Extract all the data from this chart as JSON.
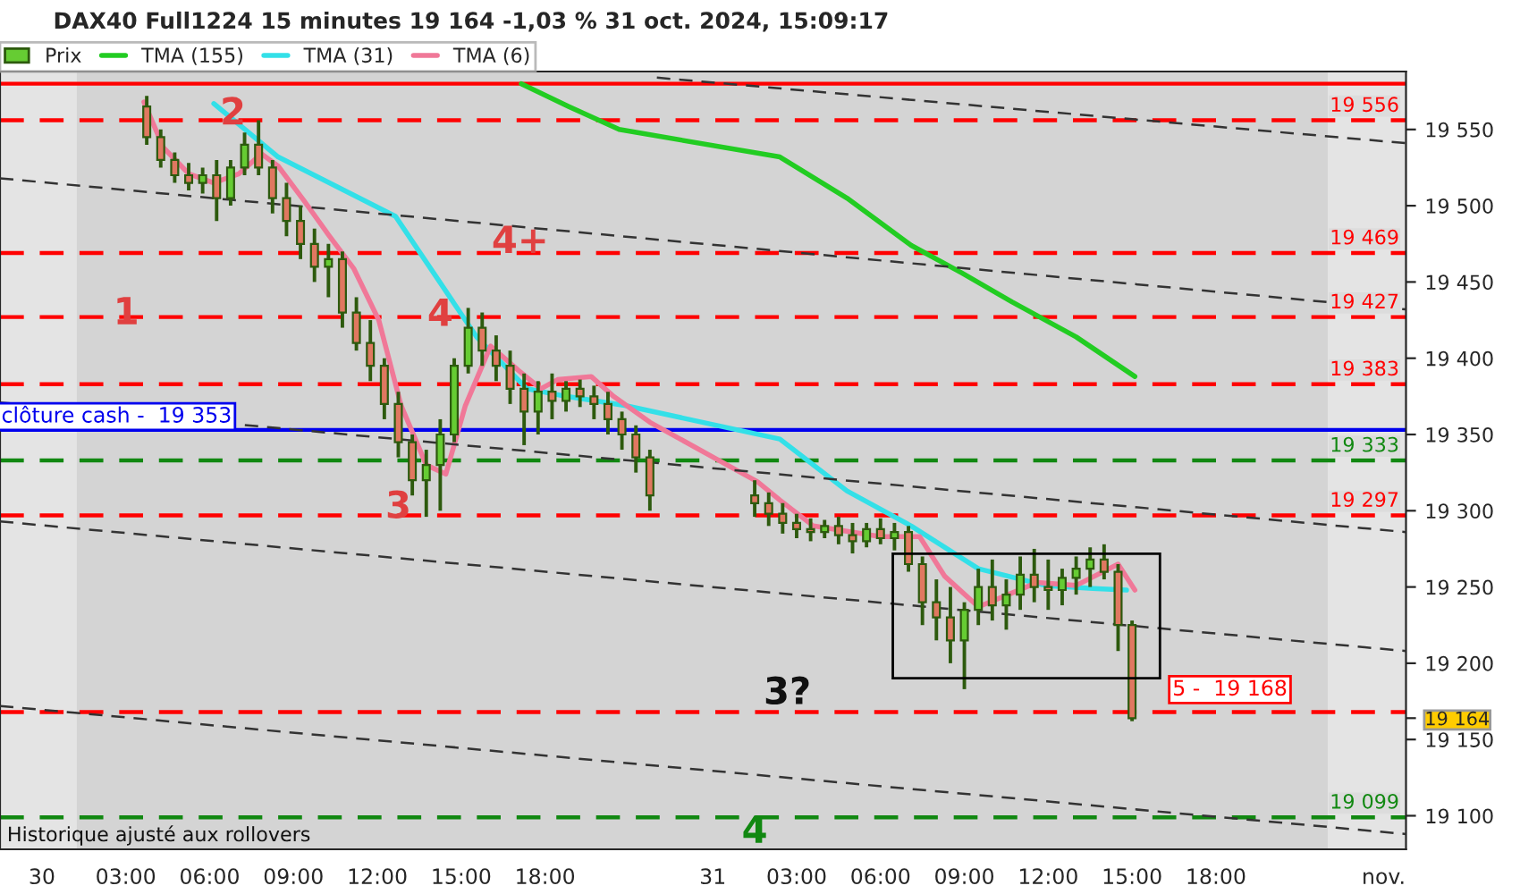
{
  "chart_data": {
    "type": "candlestick",
    "title": "DAX40 Full1224 15 minutes 19 164 -1,03 % 31 oct. 2024, 15:09:17",
    "x": [
      "2024-10-30T03:45",
      "2024-10-30T04:15",
      "2024-10-30T04:45",
      "2024-10-30T05:15",
      "2024-10-30T05:45",
      "2024-10-30T06:15",
      "2024-10-30T06:45",
      "2024-10-30T07:15",
      "2024-10-30T07:45",
      "2024-10-30T08:15",
      "2024-10-30T08:45",
      "2024-10-30T09:15",
      "2024-10-30T09:45",
      "2024-10-30T10:15",
      "2024-10-30T10:45",
      "2024-10-30T11:15",
      "2024-10-30T11:45",
      "2024-10-30T12:15",
      "2024-10-30T12:45",
      "2024-10-30T13:15",
      "2024-10-30T13:45",
      "2024-10-30T14:15",
      "2024-10-30T14:45",
      "2024-10-30T15:15",
      "2024-10-30T15:45",
      "2024-10-30T16:15",
      "2024-10-30T16:45",
      "2024-10-30T17:15",
      "2024-10-30T17:45",
      "2024-10-30T18:15",
      "2024-10-30T18:45",
      "2024-10-30T19:15",
      "2024-10-30T19:45",
      "2024-10-30T20:15",
      "2024-10-30T20:45",
      "2024-10-30T21:15",
      "2024-10-30T21:45",
      "2024-10-31T01:30",
      "2024-10-31T02:00",
      "2024-10-31T02:30",
      "2024-10-31T03:00",
      "2024-10-31T03:30",
      "2024-10-31T04:00",
      "2024-10-31T04:30",
      "2024-10-31T05:00",
      "2024-10-31T05:30",
      "2024-10-31T06:00",
      "2024-10-31T06:30",
      "2024-10-31T07:00",
      "2024-10-31T07:30",
      "2024-10-31T08:00",
      "2024-10-31T08:30",
      "2024-10-31T09:00",
      "2024-10-31T09:30",
      "2024-10-31T10:00",
      "2024-10-31T10:30",
      "2024-10-31T11:00",
      "2024-10-31T11:30",
      "2024-10-31T12:00",
      "2024-10-31T12:30",
      "2024-10-31T13:00",
      "2024-10-31T13:30",
      "2024-10-31T14:00",
      "2024-10-31T14:30",
      "2024-10-31T15:00"
    ],
    "series": [
      {
        "name": "Prix",
        "color": "#2d5a0e",
        "ohlc": [
          [
            19565,
            19572,
            19540,
            19545
          ],
          [
            19545,
            19550,
            19525,
            19530
          ],
          [
            19530,
            19535,
            19515,
            19520
          ],
          [
            19520,
            19528,
            19510,
            19515
          ],
          [
            19515,
            19525,
            19508,
            19520
          ],
          [
            19520,
            19530,
            19490,
            19505
          ],
          [
            19505,
            19530,
            19500,
            19525
          ],
          [
            19525,
            19548,
            19520,
            19540
          ],
          [
            19540,
            19556,
            19520,
            19525
          ],
          [
            19525,
            19530,
            19495,
            19505
          ],
          [
            19505,
            19515,
            19480,
            19490
          ],
          [
            19490,
            19500,
            19465,
            19475
          ],
          [
            19475,
            19485,
            19450,
            19460
          ],
          [
            19460,
            19475,
            19440,
            19465
          ],
          [
            19465,
            19470,
            19420,
            19430
          ],
          [
            19430,
            19440,
            19405,
            19410
          ],
          [
            19410,
            19425,
            19385,
            19395
          ],
          [
            19395,
            19400,
            19360,
            19370
          ],
          [
            19370,
            19378,
            19335,
            19345
          ],
          [
            19345,
            19350,
            19310,
            19320
          ],
          [
            19320,
            19340,
            19296,
            19330
          ],
          [
            19330,
            19360,
            19300,
            19350
          ],
          [
            19350,
            19400,
            19345,
            19395
          ],
          [
            19395,
            19433,
            19390,
            19420
          ],
          [
            19420,
            19430,
            19395,
            19405
          ],
          [
            19405,
            19415,
            19385,
            19395
          ],
          [
            19395,
            19405,
            19370,
            19380
          ],
          [
            19380,
            19390,
            19343,
            19365
          ],
          [
            19365,
            19385,
            19350,
            19378
          ],
          [
            19378,
            19390,
            19360,
            19372
          ],
          [
            19372,
            19385,
            19365,
            19380
          ],
          [
            19380,
            19386,
            19368,
            19375
          ],
          [
            19375,
            19382,
            19360,
            19370
          ],
          [
            19370,
            19378,
            19350,
            19360
          ],
          [
            19360,
            19365,
            19340,
            19350
          ],
          [
            19350,
            19356,
            19325,
            19335
          ],
          [
            19335,
            19340,
            19300,
            19310
          ],
          [
            19310,
            19320,
            19296,
            19305
          ],
          [
            19305,
            19312,
            19290,
            19298
          ],
          [
            19298,
            19305,
            19285,
            19292
          ],
          [
            19292,
            19298,
            19282,
            19288
          ],
          [
            19288,
            19295,
            19280,
            19286
          ],
          [
            19286,
            19294,
            19282,
            19290
          ],
          [
            19290,
            19296,
            19278,
            19284
          ],
          [
            19284,
            19292,
            19272,
            19280
          ],
          [
            19280,
            19292,
            19276,
            19288
          ],
          [
            19288,
            19295,
            19278,
            19282
          ],
          [
            19282,
            19292,
            19274,
            19286
          ],
          [
            19286,
            19290,
            19260,
            19265
          ],
          [
            19265,
            19270,
            19225,
            19240
          ],
          [
            19240,
            19255,
            19215,
            19230
          ],
          [
            19230,
            19250,
            19200,
            19215
          ],
          [
            19215,
            19240,
            19183,
            19235
          ],
          [
            19235,
            19262,
            19225,
            19250
          ],
          [
            19250,
            19268,
            19228,
            19238
          ],
          [
            19238,
            19255,
            19222,
            19245
          ],
          [
            19245,
            19270,
            19235,
            19258
          ],
          [
            19258,
            19275,
            19240,
            19250
          ],
          [
            19250,
            19268,
            19235,
            19248
          ],
          [
            19248,
            19262,
            19238,
            19256
          ],
          [
            19256,
            19270,
            19245,
            19262
          ],
          [
            19262,
            19276,
            19250,
            19268
          ],
          [
            19268,
            19278,
            19255,
            19260
          ],
          [
            19260,
            19265,
            19208,
            19225
          ],
          [
            19225,
            19228,
            19162,
            19164
          ]
        ]
      },
      {
        "name": "TMA (155)",
        "type": "line",
        "color": "#22cc22",
        "x": [
          "2024-10-30T17:09",
          "2024-10-30T18:51",
          "2024-10-30T20:39",
          "2024-10-31T02:24",
          "2024-10-31T04:48",
          "2024-10-31T07:06",
          "2024-10-31T08:54",
          "2024-10-31T10:42",
          "2024-10-31T13:00",
          "2024-10-31T15:06"
        ],
        "values": [
          19580,
          19565,
          19550,
          19532,
          19505,
          19474,
          19456,
          19437,
          19414,
          19388
        ]
      },
      {
        "name": "TMA (31)",
        "type": "line",
        "color": "#33e0e8",
        "x": [
          "2024-10-30T06:09",
          "2024-10-30T08:27",
          "2024-10-30T12:39",
          "2024-10-30T15:33",
          "2024-10-30T17:21",
          "2024-10-30T18:45",
          "2024-10-30T20:51",
          "2024-10-31T02:24",
          "2024-10-31T04:48",
          "2024-10-31T07:06",
          "2024-10-31T09:30",
          "2024-10-31T11:54",
          "2024-10-31T13:36",
          "2024-10-31T14:48"
        ],
        "values": [
          19567,
          19532,
          19493,
          19414,
          19380,
          19375,
          19369,
          19347,
          19313,
          19290,
          19262,
          19251,
          19249,
          19248
        ]
      },
      {
        "name": "TMA (6)",
        "type": "line",
        "color": "#f07898",
        "x": [
          "2024-10-30T03:39",
          "2024-10-30T04:21",
          "2024-10-30T05:15",
          "2024-10-30T06:09",
          "2024-10-30T07:03",
          "2024-10-30T07:51",
          "2024-10-30T08:27",
          "2024-10-30T09:21",
          "2024-10-30T10:15",
          "2024-10-30T11:09",
          "2024-10-30T12:03",
          "2024-10-30T12:51",
          "2024-10-30T13:45",
          "2024-10-30T14:27",
          "2024-10-30T15:09",
          "2024-10-30T16:03",
          "2024-10-30T17:03",
          "2024-10-30T17:51",
          "2024-10-30T18:27",
          "2024-10-30T19:39",
          "2024-10-30T20:27",
          "2024-10-30T21:45",
          "2024-10-31T01:36",
          "2024-10-31T02:24",
          "2024-10-31T03:36",
          "2024-10-31T06:00",
          "2024-10-31T07:24",
          "2024-10-31T08:18",
          "2024-10-31T09:30",
          "2024-10-31T10:42",
          "2024-10-31T11:36",
          "2024-10-31T13:00",
          "2024-10-31T14:30",
          "2024-10-31T15:06"
        ],
        "values": [
          19568,
          19538,
          19521,
          19515,
          19521,
          19534,
          19526,
          19504,
          19481,
          19459,
          19425,
          19369,
          19330,
          19324,
          19369,
          19408,
          19392,
          19380,
          19386,
          19388,
          19375,
          19358,
          19319,
          19307,
          19290,
          19283,
          19283,
          19257,
          19237,
          19246,
          19253,
          19251,
          19265,
          19248
        ]
      },
      {
        "type": "line",
        "color": "#333333",
        "line_style": "dashed",
        "x": [
          "2024-10-30T22:00",
          "2024-11-01T00:48"
        ],
        "values": [
          19584,
          19541
        ]
      },
      {
        "type": "line",
        "color": "#333333",
        "line_style": "dashed",
        "x": [
          "2024-10-29T22:30",
          "2024-11-01T00:48"
        ],
        "values": [
          19518,
          19432
        ]
      },
      {
        "type": "line",
        "color": "#333333",
        "line_style": "dashed",
        "x": [
          "2024-10-29T22:30",
          "2024-11-01T00:48"
        ],
        "values": [
          19371,
          19286
        ]
      },
      {
        "type": "line",
        "color": "#333333",
        "line_style": "dashed",
        "x": [
          "2024-10-29T22:30",
          "2024-11-01T00:48"
        ],
        "values": [
          19293,
          19208
        ]
      },
      {
        "type": "line",
        "color": "#333333",
        "line_style": "dashed",
        "x": [
          "2024-10-29T22:30",
          "2024-11-01T00:48"
        ],
        "values": [
          19172,
          19088
        ]
      }
    ],
    "xlim": [
      "2024-10-29T22:30",
      "2024-11-01T00:48"
    ],
    "xticks": [
      {
        "value": "2024-10-30T00:00",
        "label": "30"
      },
      {
        "value": "2024-10-30T03:00",
        "label": "03:00"
      },
      {
        "value": "2024-10-30T06:00",
        "label": "06:00"
      },
      {
        "value": "2024-10-30T09:00",
        "label": "09:00"
      },
      {
        "value": "2024-10-30T12:00",
        "label": "12:00"
      },
      {
        "value": "2024-10-30T15:00",
        "label": "15:00"
      },
      {
        "value": "2024-10-30T18:00",
        "label": "18:00"
      },
      {
        "value": "2024-10-31T00:00",
        "label": "31"
      },
      {
        "value": "2024-10-31T03:00",
        "label": "03:00"
      },
      {
        "value": "2024-10-31T06:00",
        "label": "06:00"
      },
      {
        "value": "2024-10-31T09:00",
        "label": "09:00"
      },
      {
        "value": "2024-10-31T12:00",
        "label": "12:00"
      },
      {
        "value": "2024-10-31T15:00",
        "label": "15:00"
      },
      {
        "value": "2024-10-31T18:00",
        "label": "18:00"
      },
      {
        "value": "2024-11-01T00:00",
        "label": "nov."
      }
    ],
    "ylim": [
      19078,
      19588
    ],
    "yticks": [
      {
        "value": 19100,
        "label": "19 100"
      },
      {
        "value": 19150,
        "label": "19 150"
      },
      {
        "value": 19164,
        "label": "19 164"
      },
      {
        "value": 19200,
        "label": "19 200"
      },
      {
        "value": 19250,
        "label": "19 250"
      },
      {
        "value": 19300,
        "label": "19 300"
      },
      {
        "value": 19350,
        "label": "19 350"
      },
      {
        "value": 19400,
        "label": "19 400"
      },
      {
        "value": 19450,
        "label": "19 450"
      },
      {
        "value": 19500,
        "label": "19 500"
      },
      {
        "value": 19550,
        "label": "19 550"
      }
    ],
    "ref_lines": [
      {
        "axis": "y",
        "value": 19580,
        "color": "#ff0000",
        "line_style": "solid"
      },
      {
        "axis": "y",
        "value": 19556,
        "label": "19 556",
        "color": "#ff0000",
        "line_style": "dashed"
      },
      {
        "axis": "y",
        "value": 19469,
        "label": "19 469",
        "color": "#ff0000",
        "line_style": "dashed"
      },
      {
        "axis": "y",
        "value": 19427,
        "label": "19 427",
        "color": "#ff0000",
        "line_style": "dashed"
      },
      {
        "axis": "y",
        "value": 19383,
        "label": "19 383",
        "color": "#ff0000",
        "line_style": "dashed"
      },
      {
        "axis": "y",
        "value": 19353,
        "label": "clôture cash -  19 353",
        "color": "#0000ee",
        "line_style": "solid"
      },
      {
        "axis": "y",
        "value": 19333,
        "label": "19 333",
        "color": "#118811",
        "line_style": "dashed"
      },
      {
        "axis": "y",
        "value": 19297,
        "label": "19 297",
        "color": "#ff0000",
        "line_style": "dashed"
      },
      {
        "axis": "y",
        "value": 19168,
        "color": "#ff0000",
        "line_style": "dashed"
      },
      {
        "axis": "y",
        "value": 19099,
        "label": "19 099",
        "color": "#118811",
        "line_style": "dashed"
      }
    ],
    "bands": [
      {
        "axis": "x",
        "from": "2024-10-29T22:30",
        "to": "2024-10-30T01:15",
        "color": "#e4e4e4"
      },
      {
        "axis": "x",
        "from": "2024-10-31T22:00",
        "to": "2024-11-01T00:48",
        "color": "#e4e4e4"
      }
    ],
    "annotations": [
      {
        "text": "1",
        "x": "2024-10-30T03:01",
        "y": 19429
      },
      {
        "text": "2",
        "x": "2024-10-30T06:50",
        "y": 19560
      },
      {
        "text": "3",
        "x": "2024-10-30T12:45",
        "y": 19302
      },
      {
        "text": "4",
        "x": "2024-10-30T14:15",
        "y": 19428
      },
      "4+",
      "3?",
      {
        "text": "4",
        "x": "2024-10-31T01:30",
        "y": 19099
      },
      {
        "text": "5 -  19 168",
        "x": "2024-10-31T18:30",
        "y": 19168
      },
      "Historique ajusté aux rollovers"
    ],
    "legend": "top left",
    "grid": false
  }
}
